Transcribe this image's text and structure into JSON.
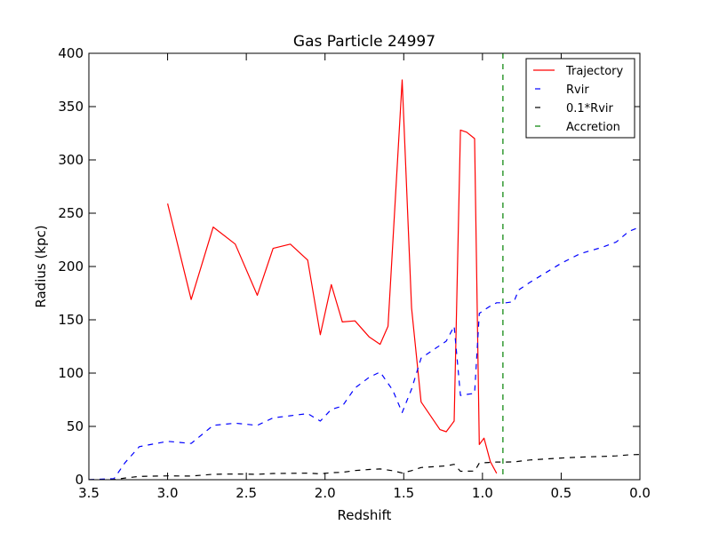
{
  "chart_data": {
    "type": "line",
    "title": "Gas Particle 24997",
    "xlabel": "Redshift",
    "ylabel": "Radius (kpc)",
    "xlim": [
      3.5,
      0.0
    ],
    "ylim": [
      0,
      400
    ],
    "x_inverted": true,
    "grid": false,
    "legend_position": "top-right",
    "xticks": [
      3.5,
      3.0,
      2.5,
      2.0,
      1.5,
      1.0,
      0.5,
      0.0
    ],
    "xtick_labels": [
      "3.5",
      "3.0",
      "2.5",
      "2.0",
      "1.5",
      "1.0",
      "0.5",
      "0.0"
    ],
    "yticks": [
      0,
      50,
      100,
      150,
      200,
      250,
      300,
      350,
      400
    ],
    "ytick_labels": [
      "0",
      "50",
      "100",
      "150",
      "200",
      "250",
      "300",
      "350",
      "400"
    ],
    "series": [
      {
        "name": "Trajectory",
        "color": "#ff0000",
        "style": "solid",
        "x": [
          3.0,
          2.85,
          2.71,
          2.57,
          2.43,
          2.33,
          2.22,
          2.11,
          2.03,
          1.96,
          1.89,
          1.81,
          1.72,
          1.65,
          1.6,
          1.51,
          1.45,
          1.39,
          1.27,
          1.23,
          1.18,
          1.14,
          1.1,
          1.05,
          1.02,
          0.99,
          0.95,
          0.91
        ],
        "y": [
          259,
          169,
          237,
          221,
          173,
          217,
          221,
          206,
          136,
          183,
          148,
          149,
          134,
          127,
          144,
          375,
          161,
          73,
          47,
          45,
          55,
          328,
          326,
          320,
          33,
          39,
          17,
          6
        ]
      },
      {
        "name": "Rvir",
        "color": "#0000ff",
        "style": "dashed",
        "x": [
          3.5,
          3.34,
          3.27,
          3.18,
          3.0,
          2.85,
          2.71,
          2.57,
          2.43,
          2.33,
          2.22,
          2.11,
          2.03,
          1.96,
          1.89,
          1.81,
          1.72,
          1.65,
          1.57,
          1.51,
          1.45,
          1.39,
          1.27,
          1.23,
          1.18,
          1.14,
          1.1,
          1.05,
          1.02,
          0.96,
          0.91,
          0.85,
          0.8,
          0.77,
          0.7,
          0.6,
          0.5,
          0.38,
          0.24,
          0.15,
          0.07,
          0.0
        ],
        "y": [
          0,
          1,
          16,
          31,
          36,
          34,
          51,
          53,
          51,
          58,
          60,
          62,
          55,
          66,
          69,
          86,
          96,
          101,
          84,
          63,
          85,
          114,
          126,
          130,
          144,
          79,
          80,
          81,
          156,
          162,
          166,
          166,
          167,
          178,
          185,
          194,
          203,
          212,
          218,
          223,
          233,
          237
        ]
      },
      {
        "name": "0.1*Rvir",
        "color": "#000000",
        "style": "dashed",
        "x": [
          3.5,
          3.34,
          3.27,
          3.18,
          3.0,
          2.85,
          2.71,
          2.57,
          2.43,
          2.33,
          2.22,
          2.11,
          2.03,
          1.96,
          1.89,
          1.81,
          1.72,
          1.65,
          1.57,
          1.51,
          1.45,
          1.39,
          1.27,
          1.23,
          1.18,
          1.14,
          1.1,
          1.05,
          1.02,
          0.96,
          0.91,
          0.85,
          0.8,
          0.7,
          0.6,
          0.5,
          0.38,
          0.24,
          0.15,
          0.07,
          0.0
        ],
        "y": [
          0,
          0.1,
          1.6,
          3.1,
          3.6,
          3.4,
          5.1,
          5.3,
          5.1,
          5.8,
          6.0,
          6.2,
          5.5,
          6.6,
          6.9,
          8.6,
          9.6,
          10.1,
          8.4,
          6.3,
          8.5,
          11.4,
          12.6,
          13.0,
          14.4,
          7.9,
          8.0,
          8.1,
          15.6,
          16.2,
          16.6,
          16.6,
          16.7,
          18.5,
          19.4,
          20.3,
          21.2,
          21.8,
          22.3,
          23.3,
          23.7
        ]
      },
      {
        "name": "Accretion",
        "color": "#008000",
        "style": "dashed",
        "vertical_line_x": 0.87
      }
    ]
  }
}
